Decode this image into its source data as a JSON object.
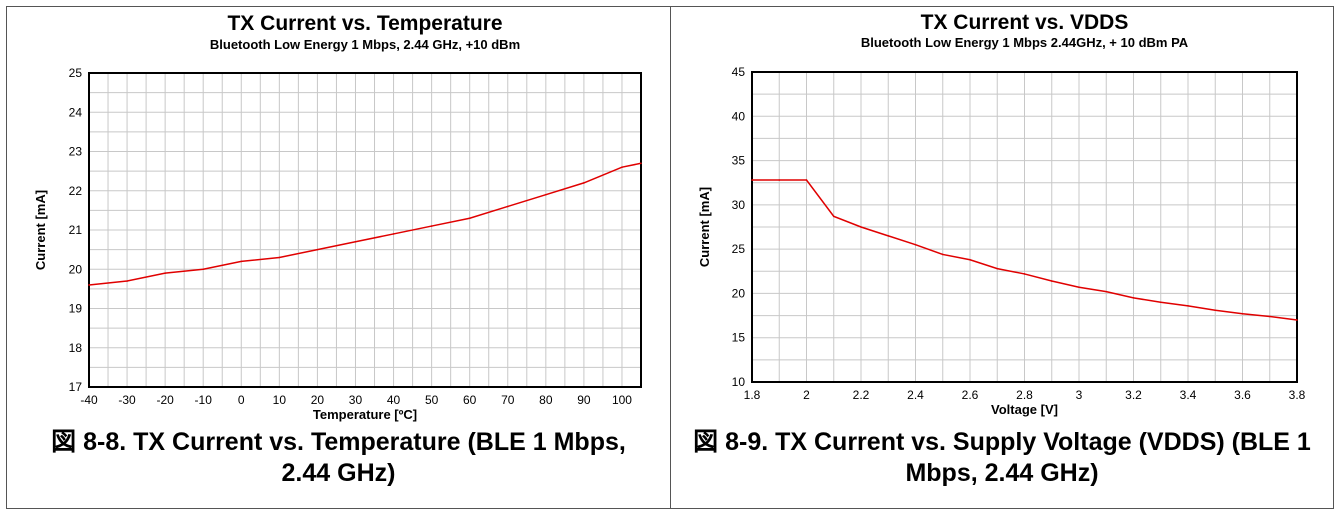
{
  "chart_data": [
    {
      "type": "line",
      "title": "TX Current vs. Temperature",
      "subtitle": "Bluetooth Low Energy 1 Mbps, 2.44 GHz, +10 dBm",
      "xlabel": "Temperature [ºC]",
      "ylabel": "Current [mA]",
      "xlim": [
        -40,
        105
      ],
      "ylim": [
        17,
        25
      ],
      "x_ticks": [
        -40,
        -30,
        -20,
        -10,
        0,
        10,
        20,
        30,
        40,
        50,
        60,
        70,
        80,
        90,
        100
      ],
      "y_ticks": [
        17,
        18,
        19,
        20,
        21,
        22,
        23,
        24,
        25
      ],
      "grid": true,
      "x_minor_step": 5,
      "y_minor_step": 0.5,
      "line_color": "#e00000",
      "series": [
        {
          "x": [
            -40,
            -30,
            -20,
            -10,
            0,
            10,
            20,
            30,
            40,
            50,
            60,
            70,
            80,
            90,
            100,
            105
          ],
          "values": [
            19.6,
            19.7,
            19.9,
            20.0,
            20.2,
            20.3,
            20.5,
            20.7,
            20.9,
            21.1,
            21.3,
            21.6,
            21.9,
            22.2,
            22.6,
            22.7
          ]
        }
      ],
      "caption": "図 8-8. TX Current vs. Temperature (BLE 1 Mbps, 2.44 GHz)"
    },
    {
      "type": "line",
      "title": "TX Current vs. VDDS",
      "subtitle": "Bluetooth Low Energy 1 Mbps 2.44GHz, + 10 dBm PA",
      "xlabel": "Voltage [V]",
      "ylabel": "Current [mA]",
      "xlim": [
        1.8,
        3.8
      ],
      "ylim": [
        10,
        45
      ],
      "x_ticks": [
        1.8,
        2,
        2.2,
        2.4,
        2.6,
        2.8,
        3,
        3.2,
        3.4,
        3.6,
        3.8
      ],
      "y_ticks": [
        10,
        15,
        20,
        25,
        30,
        35,
        40,
        45
      ],
      "grid": true,
      "x_minor_step": 0.1,
      "y_minor_step": 2.5,
      "line_color": "#e00000",
      "series": [
        {
          "x": [
            1.8,
            1.9,
            2.0,
            2.1,
            2.2,
            2.3,
            2.4,
            2.5,
            2.6,
            2.7,
            2.8,
            2.9,
            3.0,
            3.1,
            3.2,
            3.3,
            3.4,
            3.5,
            3.6,
            3.7,
            3.8
          ],
          "values": [
            32.8,
            32.8,
            32.8,
            28.7,
            27.5,
            26.5,
            25.5,
            24.4,
            23.8,
            22.8,
            22.2,
            21.4,
            20.7,
            20.2,
            19.5,
            19.0,
            18.6,
            18.1,
            17.7,
            17.4,
            17.0
          ]
        }
      ],
      "caption": "図 8-9. TX Current vs. Supply Voltage (VDDS) (BLE 1 Mbps, 2.44 GHz)"
    }
  ]
}
